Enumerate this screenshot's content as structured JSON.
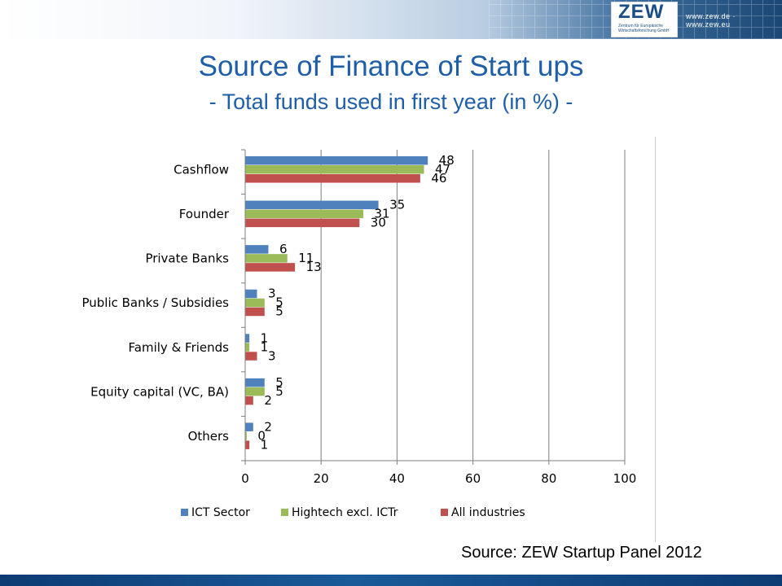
{
  "header": {
    "logo_text": "ZEW",
    "logo_subtext": "Zentrum für Europäische Wirtschaftsforschung GmbH",
    "url": "www.zew.de · www.zew.eu"
  },
  "title": {
    "main": "Source of Finance of Start ups",
    "sub": "- Total funds used in first year (in %) -"
  },
  "source": "Source: ZEW Startup Panel 2012",
  "chart_data": {
    "type": "bar",
    "orientation": "horizontal",
    "categories": [
      "Cashflow",
      "Founder",
      "Private Banks",
      "Public Banks / Subsidies",
      "Family & Friends",
      "Equity capital (VC, BA)",
      "Others"
    ],
    "series": [
      {
        "name": "ICT Sector",
        "color": "#4f81bd",
        "values": [
          48,
          35,
          6,
          3,
          1,
          5,
          2
        ],
        "labels": [
          "48",
          "35",
          "6",
          "3",
          "1",
          "5",
          "2"
        ]
      },
      {
        "name": "Hightech excl. ICTr",
        "color": "#9bbb59",
        "values": [
          47,
          31,
          11,
          5,
          1,
          5,
          0.3
        ],
        "labels": [
          "47",
          "31",
          "11",
          "5",
          "1",
          "5",
          "0"
        ]
      },
      {
        "name": "All industries",
        "color": "#c0504d",
        "values": [
          46,
          30,
          13,
          5,
          3,
          2,
          1
        ],
        "labels": [
          "46",
          "30",
          "13",
          "5",
          "3",
          "2",
          "1"
        ]
      }
    ],
    "xlim": [
      0,
      100
    ],
    "xticks": [
      "0",
      "20",
      "40",
      "60",
      "80",
      "100"
    ],
    "grid": "vertical",
    "legend": "bottom"
  }
}
